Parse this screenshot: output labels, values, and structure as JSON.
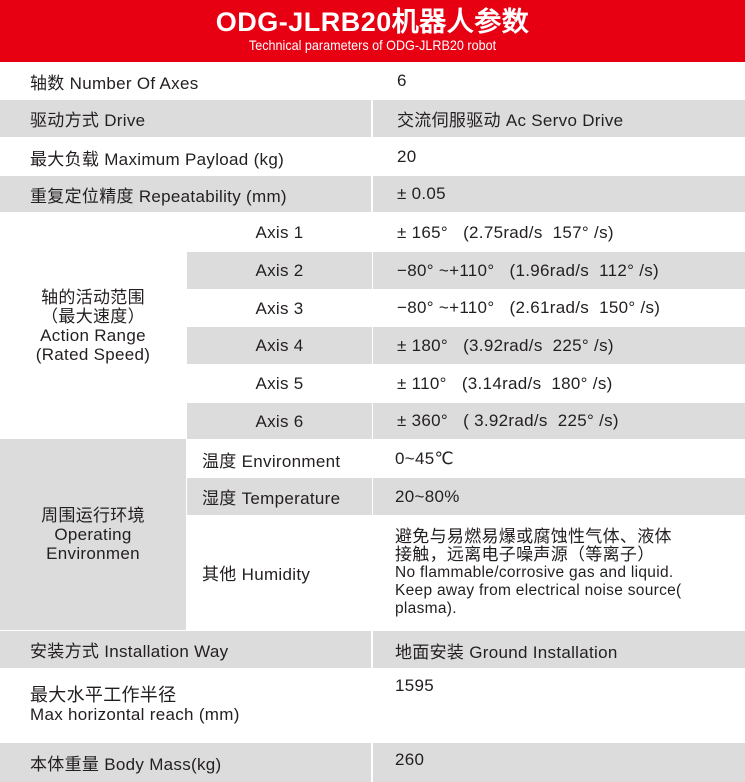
{
  "header": {
    "title": "ODG-JLRB20机器人参数",
    "subtitle": "Technical parameters of ODG-JLRB20 robot"
  },
  "rows": [
    {
      "label": "轴数  Number Of Axes",
      "value": "6"
    },
    {
      "label": "驱动方式 Drive",
      "value": "交流伺服驱动 Ac Servo Drive"
    },
    {
      "label": "最大负载 Maximum Payload (kg)",
      "value": "20"
    },
    {
      "label": "重复定位精度 Repeatability (mm)",
      "value": "± 0.05"
    }
  ],
  "action_range": {
    "label_cn": "轴的活动范围",
    "label_cn2": "（最大速度）",
    "label_en": "Action Range",
    "label_en2": "(Rated Speed)",
    "axes": [
      {
        "name": "Axis 1",
        "value": "± 165°   (2.75rad/s  157° /s)"
      },
      {
        "name": "Axis 2",
        "value": "−80° ~+110°   (1.96rad/s  112° /s)"
      },
      {
        "name": "Axis 3",
        "value": "−80° ~+110°   (2.61rad/s  150° /s)"
      },
      {
        "name": "Axis 4",
        "value": "± 180°   (3.92rad/s  225° /s)"
      },
      {
        "name": "Axis 5",
        "value": "± 110°   (3.14rad/s  180° /s)"
      },
      {
        "name": "Axis 6",
        "value": "± 360°   ( 3.92rad/s  225° /s)"
      }
    ]
  },
  "environment": {
    "label_cn": "周围运行环境",
    "label_en": "Operating",
    "label_en2": "Environmen",
    "items": [
      {
        "name": "温度 Environment",
        "value": "0~45℃"
      },
      {
        "name": "湿度 Temperature",
        "value": "20~80%"
      },
      {
        "name": "其他 Humidity",
        "lines": [
          "避免与易燃易爆或腐蚀性气体、液体",
          "接触，远离电子噪声源（等离子）",
          "No flammable/corrosive gas and liquid.",
          "Keep away from electrical noise source(",
          "plasma)."
        ]
      }
    ]
  },
  "installation": {
    "label": "安装方式 Installation Way",
    "value": "地面安装 Ground Installation"
  },
  "reach": {
    "label_cn": "最大水平工作半径",
    "label_en": "Max horizontal reach (mm)",
    "value": "1595"
  },
  "mass": {
    "label": "本体重量 Body Mass(kg)",
    "value": "260"
  }
}
